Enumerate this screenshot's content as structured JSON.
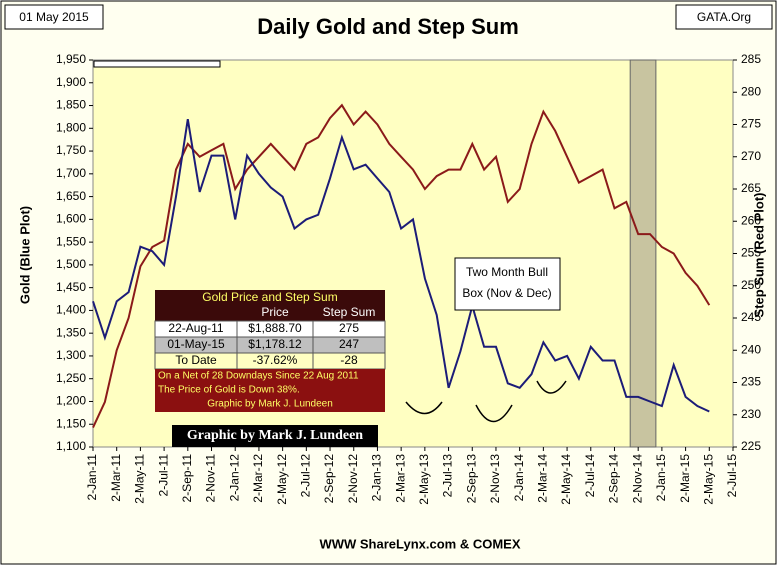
{
  "chart_data": {
    "type": "line",
    "title": "Daily Gold and Step Sum",
    "date_label": "01 May 2015",
    "source_label": "GATA.Org",
    "footer": "WWW ShareLynx.com & COMEX",
    "y_label": "Gold   (Blue Plot)",
    "y2_label": "Step Sum   (Red Plot)",
    "credit": "Graphic by Mark J. Lundeen",
    "annotation": [
      "Two Month  Bull",
      "Box (Nov & Dec)"
    ],
    "categories": [
      "2-Jan-11",
      null,
      "2-Mar-11",
      null,
      "2-May-11",
      null,
      "2-Jul-11",
      null,
      "2-Sep-11",
      null,
      "2-Nov-11",
      null,
      "2-Jan-12",
      null,
      "2-Mar-12",
      null,
      "2-May-12",
      null,
      "2-Jul-12",
      null,
      "2-Sep-12",
      null,
      "2-Nov-12",
      null,
      "2-Jan-13",
      null,
      "2-Mar-13",
      null,
      "2-May-13",
      null,
      "2-Jul-13",
      null,
      "2-Sep-13",
      null,
      "2-Nov-13",
      null,
      "2-Jan-14",
      null,
      "2-Mar-14",
      null,
      "2-May-14",
      null,
      "2-Jul-14",
      null,
      "2-Sep-14",
      null,
      "2-Nov-14",
      null,
      "2-Jan-15",
      null,
      "2-Mar-15",
      null,
      "2-May-15",
      null,
      "2-Jul-15"
    ],
    "series": [
      {
        "name": "Gold",
        "color": "#1c1c78",
        "axis": "y",
        "values": [
          1420,
          1340,
          1420,
          1440,
          1540,
          1530,
          1500,
          1650,
          1820,
          1660,
          1740,
          1740,
          1600,
          1740,
          1700,
          1670,
          1650,
          1580,
          1600,
          1610,
          1690,
          1780,
          1710,
          1720,
          1690,
          1660,
          1580,
          1600,
          1470,
          1390,
          1230,
          1310,
          1410,
          1320,
          1320,
          1240,
          1230,
          1260,
          1330,
          1290,
          1300,
          1250,
          1320,
          1290,
          1290,
          1210,
          1210,
          1200,
          1190,
          1280,
          1210,
          1190,
          1178,
          null,
          null
        ]
      },
      {
        "name": "Step Sum",
        "color": "#8b1a1a",
        "axis": "y2",
        "values": [
          228,
          232,
          240,
          245,
          253,
          256,
          257,
          268,
          272,
          270,
          271,
          272,
          265,
          268,
          270,
          272,
          270,
          268,
          272,
          273,
          276,
          278,
          275,
          277,
          275,
          272,
          270,
          268,
          265,
          267,
          268,
          268,
          272,
          268,
          270,
          263,
          265,
          272,
          277,
          274,
          270,
          266,
          267,
          268,
          262,
          263,
          258,
          258,
          256,
          255,
          252,
          250,
          247,
          null,
          null
        ]
      }
    ],
    "ylim": [
      1100,
      1950
    ],
    "yticks": [
      {
        "value": 1100,
        "label": "1,100"
      },
      {
        "value": 1150,
        "label": "1,150"
      },
      {
        "value": 1200,
        "label": "1,200"
      },
      {
        "value": 1250,
        "label": "1,250"
      },
      {
        "value": 1300,
        "label": "1,300"
      },
      {
        "value": 1350,
        "label": "1,350"
      },
      {
        "value": 1400,
        "label": "1,400"
      },
      {
        "value": 1450,
        "label": "1,450"
      },
      {
        "value": 1500,
        "label": "1,500"
      },
      {
        "value": 1550,
        "label": "1,550"
      },
      {
        "value": 1600,
        "label": "1,600"
      },
      {
        "value": 1650,
        "label": "1,650"
      },
      {
        "value": 1700,
        "label": "1,700"
      },
      {
        "value": 1750,
        "label": "1,750"
      },
      {
        "value": 1800,
        "label": "1,800"
      },
      {
        "value": 1850,
        "label": "1,850"
      },
      {
        "value": 1900,
        "label": "1,900"
      },
      {
        "value": 1950,
        "label": "1,950"
      }
    ],
    "y2lim": [
      225,
      285
    ],
    "y2ticks": [
      225,
      230,
      235,
      240,
      245,
      250,
      255,
      260,
      265,
      270,
      275,
      280,
      285
    ],
    "table": {
      "title": "Gold Price and Step Sum",
      "columns": [
        "Price",
        "Step Sum"
      ],
      "rows": [
        [
          "22-Aug-11",
          "$1,888.70",
          "275"
        ],
        [
          "01-May-15",
          "$1,178.12",
          "247"
        ],
        [
          "To Date",
          "-37.62%",
          "-28"
        ]
      ],
      "notes": [
        "On a Net of 28 Downdays Since 22 Aug 2011",
        "The Price of Gold is Down 38%.",
        "Graphic by Mark J. Lundeen"
      ]
    }
  }
}
